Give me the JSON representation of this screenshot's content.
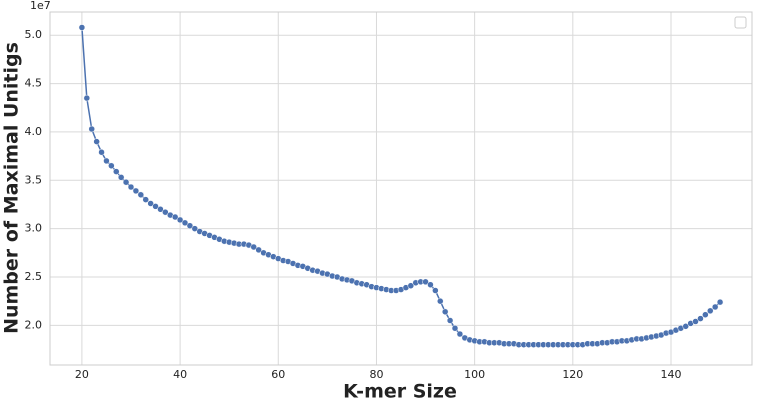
{
  "chart_data": {
    "type": "line",
    "xlabel": "K-mer Size",
    "ylabel": "Number of Maximal Unitigs",
    "y_offset_label": "1e7",
    "x": [
      20,
      21,
      22,
      23,
      24,
      25,
      26,
      27,
      28,
      29,
      30,
      31,
      32,
      33,
      34,
      35,
      36,
      37,
      38,
      39,
      40,
      41,
      42,
      43,
      44,
      45,
      46,
      47,
      48,
      49,
      50,
      51,
      52,
      53,
      54,
      55,
      56,
      57,
      58,
      59,
      60,
      61,
      62,
      63,
      64,
      65,
      66,
      67,
      68,
      69,
      70,
      71,
      72,
      73,
      74,
      75,
      76,
      77,
      78,
      79,
      80,
      81,
      82,
      83,
      84,
      85,
      86,
      87,
      88,
      89,
      90,
      91,
      92,
      93,
      94,
      95,
      96,
      97,
      98,
      99,
      100,
      101,
      102,
      103,
      104,
      105,
      106,
      107,
      108,
      109,
      110,
      111,
      112,
      113,
      114,
      115,
      116,
      117,
      118,
      119,
      120,
      121,
      122,
      123,
      124,
      125,
      126,
      127,
      128,
      129,
      130,
      131,
      132,
      133,
      134,
      135,
      136,
      137,
      138,
      139,
      140,
      141,
      142,
      143,
      144,
      145,
      146,
      147,
      148,
      149,
      150
    ],
    "series": [
      {
        "color": "#4c72b0",
        "values": [
          5.08,
          4.35,
          4.03,
          3.9,
          3.79,
          3.7,
          3.65,
          3.59,
          3.53,
          3.48,
          3.43,
          3.39,
          3.35,
          3.3,
          3.26,
          3.23,
          3.2,
          3.17,
          3.14,
          3.12,
          3.09,
          3.06,
          3.03,
          3.0,
          2.97,
          2.95,
          2.93,
          2.91,
          2.89,
          2.87,
          2.86,
          2.85,
          2.84,
          2.84,
          2.83,
          2.81,
          2.78,
          2.75,
          2.73,
          2.71,
          2.69,
          2.67,
          2.66,
          2.64,
          2.62,
          2.61,
          2.59,
          2.57,
          2.56,
          2.54,
          2.53,
          2.51,
          2.5,
          2.48,
          2.47,
          2.46,
          2.44,
          2.43,
          2.42,
          2.4,
          2.39,
          2.38,
          2.37,
          2.36,
          2.36,
          2.37,
          2.39,
          2.41,
          2.44,
          2.45,
          2.45,
          2.42,
          2.36,
          2.25,
          2.14,
          2.05,
          1.97,
          1.91,
          1.87,
          1.85,
          1.84,
          1.83,
          1.83,
          1.82,
          1.82,
          1.82,
          1.81,
          1.81,
          1.81,
          1.8,
          1.8,
          1.8,
          1.8,
          1.8,
          1.8,
          1.8,
          1.8,
          1.8,
          1.8,
          1.8,
          1.8,
          1.8,
          1.8,
          1.81,
          1.81,
          1.81,
          1.82,
          1.82,
          1.83,
          1.83,
          1.84,
          1.84,
          1.85,
          1.86,
          1.86,
          1.87,
          1.88,
          1.89,
          1.9,
          1.92,
          1.93,
          1.95,
          1.97,
          1.99,
          2.02,
          2.04,
          2.07,
          2.11,
          2.15,
          2.19,
          2.24
        ]
      }
    ],
    "xlim": [
      13.5,
      156.5
    ],
    "ylim": [
      1.59,
      5.24
    ],
    "xticks": [
      20,
      40,
      60,
      80,
      100,
      120,
      140
    ],
    "yticks": [
      {
        "value": 2,
        "label": "2.0"
      },
      {
        "value": 2.5,
        "label": "2.5"
      },
      {
        "value": 3,
        "label": "3.0"
      },
      {
        "value": 3.5,
        "label": "3.5"
      },
      {
        "value": 4,
        "label": "4.0"
      },
      {
        "value": 4.5,
        "label": "4.5"
      },
      {
        "value": 5,
        "label": "5.0"
      }
    ],
    "grid": true
  }
}
